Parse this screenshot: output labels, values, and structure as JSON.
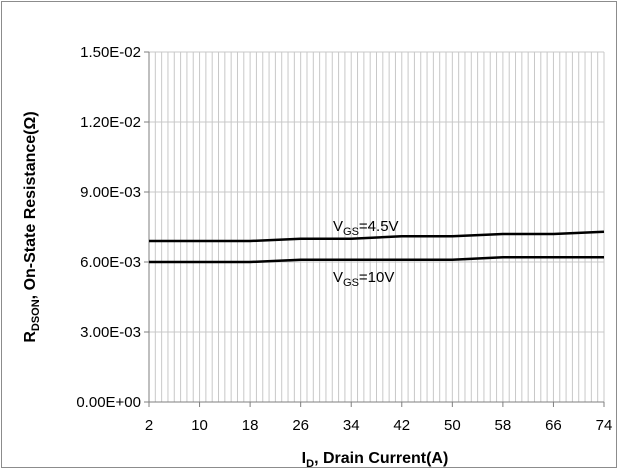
{
  "chart_data": {
    "type": "line",
    "title": "",
    "ylabel": {
      "main": "R",
      "sub": "DSON",
      "rest": ", On-State Resistance(Ω)"
    },
    "xlabel": {
      "main": "I",
      "sub": "D",
      "rest": ", Drain Current(A)"
    },
    "x_ticks": [
      2,
      10,
      18,
      26,
      34,
      42,
      50,
      58,
      66,
      74
    ],
    "y_ticks": [
      "0.00E+00",
      "3.00E-03",
      "6.00E-03",
      "9.00E-03",
      "1.20E-02",
      "1.50E-02"
    ],
    "y_tick_values": [
      0,
      0.003,
      0.006,
      0.009,
      0.012,
      0.015
    ],
    "xlim": [
      2,
      74
    ],
    "ylim": [
      0,
      0.015
    ],
    "grid": true,
    "series": [
      {
        "label": {
          "main": "V",
          "sub": "GS",
          "rest": "=4.5V"
        },
        "color": "#000000",
        "x": [
          2,
          10,
          18,
          26,
          34,
          42,
          50,
          58,
          66,
          74
        ],
        "y": [
          0.0069,
          0.0069,
          0.0069,
          0.007,
          0.007,
          0.0071,
          0.0071,
          0.0072,
          0.0072,
          0.0073
        ]
      },
      {
        "label": {
          "main": "V",
          "sub": "GS",
          "rest": "=10V"
        },
        "color": "#000000",
        "x": [
          2,
          10,
          18,
          26,
          34,
          42,
          50,
          58,
          66,
          74
        ],
        "y": [
          0.006,
          0.006,
          0.006,
          0.0061,
          0.0061,
          0.0061,
          0.0061,
          0.0062,
          0.0062,
          0.0062
        ]
      }
    ]
  }
}
